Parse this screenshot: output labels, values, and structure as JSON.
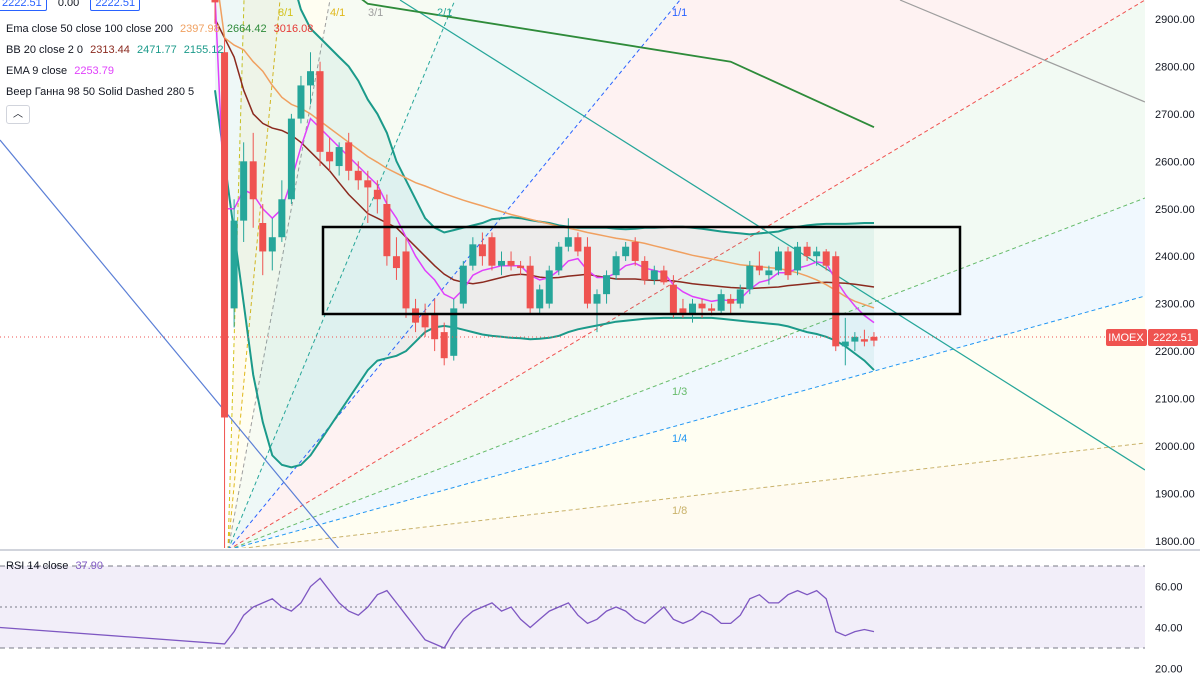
{
  "chart_data": {
    "type": "candlestick",
    "symbol": "IMOEX",
    "last_price": "2222.51",
    "y_axis_ticks": [
      "2900.00",
      "2800.00",
      "2700.00",
      "2600.00",
      "2500.00",
      "2400.00",
      "2300.00",
      "2200.00",
      "2100.00",
      "2000.00",
      "1900.00",
      "1800.00"
    ],
    "rsi_axis_ticks": [
      "60.00",
      "40.00",
      "20.00"
    ],
    "rsi_bands": {
      "upper": 70,
      "middle": 50,
      "lower": 30
    },
    "candles": [
      {
        "o": 2960,
        "h": 2990,
        "l": 2890,
        "c": 2935
      },
      {
        "o": 2830,
        "h": 2860,
        "l": 1760,
        "c": 2060
      },
      {
        "o": 2290,
        "h": 2520,
        "l": 2250,
        "c": 2475
      },
      {
        "o": 2475,
        "h": 2640,
        "l": 2430,
        "c": 2600
      },
      {
        "o": 2600,
        "h": 2660,
        "l": 2460,
        "c": 2520
      },
      {
        "o": 2470,
        "h": 2510,
        "l": 2360,
        "c": 2410
      },
      {
        "o": 2410,
        "h": 2480,
        "l": 2370,
        "c": 2440
      },
      {
        "o": 2440,
        "h": 2560,
        "l": 2430,
        "c": 2520
      },
      {
        "o": 2520,
        "h": 2700,
        "l": 2510,
        "c": 2690
      },
      {
        "o": 2690,
        "h": 2780,
        "l": 2680,
        "c": 2760
      },
      {
        "o": 2760,
        "h": 2830,
        "l": 2720,
        "c": 2790
      },
      {
        "o": 2790,
        "h": 2810,
        "l": 2590,
        "c": 2620
      },
      {
        "o": 2620,
        "h": 2650,
        "l": 2580,
        "c": 2600
      },
      {
        "o": 2590,
        "h": 2640,
        "l": 2570,
        "c": 2630
      },
      {
        "o": 2640,
        "h": 2660,
        "l": 2560,
        "c": 2580
      },
      {
        "o": 2580,
        "h": 2600,
        "l": 2540,
        "c": 2560
      },
      {
        "o": 2560,
        "h": 2580,
        "l": 2470,
        "c": 2545
      },
      {
        "o": 2540,
        "h": 2560,
        "l": 2490,
        "c": 2520
      },
      {
        "o": 2510,
        "h": 2530,
        "l": 2380,
        "c": 2400
      },
      {
        "o": 2400,
        "h": 2440,
        "l": 2350,
        "c": 2375
      },
      {
        "o": 2410,
        "h": 2440,
        "l": 2270,
        "c": 2290
      },
      {
        "o": 2290,
        "h": 2310,
        "l": 2240,
        "c": 2260
      },
      {
        "o": 2280,
        "h": 2300,
        "l": 2230,
        "c": 2250
      },
      {
        "o": 2280,
        "h": 2310,
        "l": 2200,
        "c": 2225
      },
      {
        "o": 2240,
        "h": 2260,
        "l": 2170,
        "c": 2185
      },
      {
        "o": 2190,
        "h": 2310,
        "l": 2180,
        "c": 2290
      },
      {
        "o": 2300,
        "h": 2390,
        "l": 2290,
        "c": 2380
      },
      {
        "o": 2380,
        "h": 2440,
        "l": 2370,
        "c": 2425
      },
      {
        "o": 2425,
        "h": 2450,
        "l": 2380,
        "c": 2400
      },
      {
        "o": 2440,
        "h": 2450,
        "l": 2370,
        "c": 2380
      },
      {
        "o": 2380,
        "h": 2410,
        "l": 2360,
        "c": 2390
      },
      {
        "o": 2390,
        "h": 2410,
        "l": 2370,
        "c": 2380
      },
      {
        "o": 2380,
        "h": 2390,
        "l": 2360,
        "c": 2375
      },
      {
        "o": 2380,
        "h": 2400,
        "l": 2280,
        "c": 2290
      },
      {
        "o": 2290,
        "h": 2340,
        "l": 2280,
        "c": 2330
      },
      {
        "o": 2300,
        "h": 2380,
        "l": 2290,
        "c": 2370
      },
      {
        "o": 2370,
        "h": 2430,
        "l": 2360,
        "c": 2420
      },
      {
        "o": 2420,
        "h": 2480,
        "l": 2410,
        "c": 2440
      },
      {
        "o": 2440,
        "h": 2450,
        "l": 2400,
        "c": 2410
      },
      {
        "o": 2420,
        "h": 2440,
        "l": 2290,
        "c": 2300
      },
      {
        "o": 2300,
        "h": 2330,
        "l": 2240,
        "c": 2320
      },
      {
        "o": 2320,
        "h": 2370,
        "l": 2300,
        "c": 2360
      },
      {
        "o": 2360,
        "h": 2410,
        "l": 2350,
        "c": 2400
      },
      {
        "o": 2400,
        "h": 2430,
        "l": 2390,
        "c": 2420
      },
      {
        "o": 2430,
        "h": 2440,
        "l": 2380,
        "c": 2390
      },
      {
        "o": 2390,
        "h": 2400,
        "l": 2340,
        "c": 2350
      },
      {
        "o": 2350,
        "h": 2380,
        "l": 2340,
        "c": 2370
      },
      {
        "o": 2370,
        "h": 2380,
        "l": 2340,
        "c": 2345
      },
      {
        "o": 2340,
        "h": 2360,
        "l": 2270,
        "c": 2280
      },
      {
        "o": 2290,
        "h": 2310,
        "l": 2270,
        "c": 2280
      },
      {
        "o": 2280,
        "h": 2310,
        "l": 2260,
        "c": 2300
      },
      {
        "o": 2300,
        "h": 2310,
        "l": 2270,
        "c": 2290
      },
      {
        "o": 2290,
        "h": 2300,
        "l": 2275,
        "c": 2285
      },
      {
        "o": 2285,
        "h": 2330,
        "l": 2280,
        "c": 2320
      },
      {
        "o": 2310,
        "h": 2320,
        "l": 2280,
        "c": 2300
      },
      {
        "o": 2300,
        "h": 2340,
        "l": 2290,
        "c": 2330
      },
      {
        "o": 2330,
        "h": 2390,
        "l": 2320,
        "c": 2380
      },
      {
        "o": 2380,
        "h": 2410,
        "l": 2360,
        "c": 2370
      },
      {
        "o": 2360,
        "h": 2380,
        "l": 2340,
        "c": 2370
      },
      {
        "o": 2370,
        "h": 2420,
        "l": 2360,
        "c": 2410
      },
      {
        "o": 2410,
        "h": 2420,
        "l": 2350,
        "c": 2360
      },
      {
        "o": 2370,
        "h": 2430,
        "l": 2360,
        "c": 2420
      },
      {
        "o": 2420,
        "h": 2430,
        "l": 2390,
        "c": 2400
      },
      {
        "o": 2400,
        "h": 2420,
        "l": 2380,
        "c": 2410
      },
      {
        "o": 2410,
        "h": 2415,
        "l": 2370,
        "c": 2380
      },
      {
        "o": 2400,
        "h": 2410,
        "l": 2200,
        "c": 2210
      },
      {
        "o": 2210,
        "h": 2270,
        "l": 2170,
        "c": 2220
      },
      {
        "o": 2220,
        "h": 2240,
        "l": 2200,
        "c": 2230
      },
      {
        "o": 2225,
        "h": 2245,
        "l": 2210,
        "c": 2220
      },
      {
        "o": 2230,
        "h": 2240,
        "l": 2210,
        "c": 2222
      }
    ],
    "ema9": [
      2950,
      2500,
      2500,
      2540,
      2530,
      2500,
      2480,
      2500,
      2560,
      2630,
      2690,
      2670,
      2650,
      2630,
      2610,
      2590,
      2570,
      2550,
      2510,
      2480,
      2440,
      2400,
      2370,
      2350,
      2320,
      2310,
      2330,
      2360,
      2370,
      2375,
      2380,
      2380,
      2380,
      2360,
      2350,
      2355,
      2370,
      2390,
      2395,
      2370,
      2355,
      2355,
      2365,
      2380,
      2385,
      2375,
      2370,
      2365,
      2340,
      2325,
      2315,
      2310,
      2305,
      2308,
      2306,
      2310,
      2330,
      2345,
      2350,
      2365,
      2365,
      2375,
      2380,
      2388,
      2385,
      2350,
      2320,
      2295,
      2275,
      2260
    ],
    "ema50": [
      3010,
      2860,
      2845,
      2835,
      2810,
      2790,
      2760,
      2735,
      2720,
      2712,
      2700,
      2685,
      2670,
      2655,
      2640,
      2625,
      2610,
      2598,
      2585,
      2575,
      2565,
      2555,
      2548,
      2540,
      2532,
      2525,
      2518,
      2512,
      2506,
      2500,
      2494,
      2488,
      2483,
      2478,
      2473,
      2468,
      2463,
      2459,
      2455,
      2450,
      2446,
      2442,
      2438,
      2435,
      2431,
      2427,
      2422,
      2417,
      2412,
      2407,
      2402,
      2398,
      2394,
      2390,
      2386,
      2382,
      2380,
      2378,
      2376,
      2374,
      2370,
      2365,
      2358,
      2350,
      2340,
      2328,
      2315,
      2305,
      2298,
      2291
    ],
    "ema100_segment": [
      [
        0,
        3175
      ],
      [
        16,
        2932
      ],
      [
        54,
        2810
      ],
      [
        69,
        2672
      ]
    ],
    "bb_basis": [
      2900,
      2860,
      2820,
      2750,
      2700,
      2680,
      2670,
      2665,
      2655,
      2640,
      2620,
      2600,
      2580,
      2555,
      2530,
      2510,
      2490,
      2480,
      2470,
      2460,
      2440,
      2420,
      2400,
      2380,
      2362,
      2350,
      2345,
      2342,
      2345,
      2350,
      2355,
      2360,
      2362,
      2360,
      2356,
      2354,
      2355,
      2358,
      2360,
      2362,
      2358,
      2355,
      2352,
      2352,
      2352,
      2350,
      2349,
      2349,
      2348,
      2345,
      2342,
      2340,
      2338,
      2336,
      2334,
      2333,
      2332,
      2333,
      2334,
      2335,
      2338,
      2340,
      2342,
      2344,
      2345,
      2344,
      2343,
      2341,
      2338,
      2335
    ],
    "bb_upper": [
      3050,
      3100,
      3120,
      3120,
      3100,
      3090,
      3080,
      3050,
      2990,
      2920,
      2880,
      2860,
      2840,
      2820,
      2800,
      2770,
      2730,
      2700,
      2660,
      2600,
      2560,
      2520,
      2480,
      2460,
      2450,
      2455,
      2460,
      2465,
      2470,
      2478,
      2480,
      2482,
      2480,
      2476,
      2473,
      2470,
      2465,
      2462,
      2460,
      2460,
      2460,
      2460,
      2458,
      2457,
      2458,
      2460,
      2460,
      2461,
      2462,
      2462,
      2460,
      2458,
      2455,
      2452,
      2450,
      2448,
      2446,
      2448,
      2450,
      2452,
      2458,
      2462,
      2465,
      2467,
      2468,
      2468,
      2468,
      2469,
      2470,
      2470
    ],
    "bb_lower": [
      2750,
      2600,
      2450,
      2300,
      2150,
      2050,
      1980,
      1960,
      1955,
      1960,
      1980,
      2010,
      2040,
      2070,
      2100,
      2130,
      2160,
      2180,
      2185,
      2190,
      2200,
      2220,
      2240,
      2250,
      2253,
      2250,
      2245,
      2240,
      2235,
      2232,
      2230,
      2228,
      2227,
      2225,
      2226,
      2228,
      2232,
      2240,
      2246,
      2250,
      2254,
      2258,
      2262,
      2264,
      2266,
      2268,
      2269,
      2270,
      2270,
      2270,
      2270,
      2270,
      2270,
      2268,
      2266,
      2264,
      2262,
      2260,
      2258,
      2256,
      2252,
      2246,
      2240,
      2236,
      2230,
      2222,
      2210,
      2195,
      2180,
      2160
    ],
    "rsi": [
      40,
      32,
      38,
      46,
      50,
      52,
      54,
      50,
      48,
      52,
      60,
      64,
      58,
      52,
      48,
      46,
      50,
      56,
      58,
      52,
      46,
      40,
      34,
      32,
      30,
      38,
      44,
      48,
      50,
      52,
      48,
      50,
      44,
      40,
      44,
      48,
      50,
      52,
      46,
      42,
      44,
      48,
      50,
      48,
      44,
      42,
      46,
      50,
      44,
      42,
      44,
      48,
      46,
      42,
      42,
      46,
      54,
      56,
      52,
      52,
      56,
      58,
      56,
      58,
      54,
      38,
      36,
      38,
      39,
      38
    ],
    "fan_labels": [
      "8/1",
      "4/1",
      "3/1",
      "2/1",
      "1/1",
      "1/3",
      "1/4",
      "1/8"
    ],
    "legend": {
      "row0": {
        "v1": "2222.51",
        "v2": "0.00",
        "v3": "2222.51"
      },
      "ema": {
        "label": "Ema close 50 close 100 close 200",
        "v1": "2397.98",
        "v2": "2664.42",
        "v3": "3016.08"
      },
      "bb": {
        "label": "BB 20 close 2 0",
        "v1": "2313.44",
        "v2": "2471.77",
        "v3": "2155.12"
      },
      "ema9": {
        "label": "EMA 9 close",
        "v1": "2253.79"
      },
      "gann": {
        "label": "Веер Ганна 98 50 Solid Dashed 280 5"
      },
      "rsi": {
        "label": "RSI 14 close",
        "v1": "37.90"
      }
    },
    "colors": {
      "up": "#26a69a",
      "down": "#ef5350",
      "ema9": "#e040fb",
      "ema50": "#f0a060",
      "ema100": "#2e8b3a",
      "bb_basis": "#8b2a1f",
      "bb_band": "#1b9a8a",
      "rsi": "#7e57c2"
    }
  }
}
